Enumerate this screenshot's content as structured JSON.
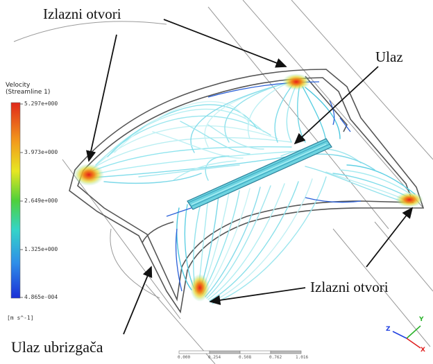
{
  "labels": {
    "outlets_top": "Izlazni otvori",
    "inlet": "Ulaz",
    "outlets_bottom": "Izlazni otvori",
    "injector_inlet": "Ulaz ubrizgača"
  },
  "colorbar": {
    "title": "Velocity",
    "subtitle": "(Streamline 1)",
    "ticks": [
      "5.297e+000",
      "3.973e+000",
      "2.649e+000",
      "1.325e+000",
      "4.865e-004"
    ],
    "unit": "[m s^-1]"
  },
  "scale_bar": {
    "ticks": [
      "0.000",
      "0.254",
      "0.508",
      "0.762",
      "1.016"
    ]
  },
  "triad": {
    "x": "X",
    "y": "Y",
    "z": "Z"
  },
  "colors": {
    "streamline_low": "#1a53d8",
    "streamline_mid": "#5fe0e6",
    "streamline_high": "#f03a12",
    "outline": "#555555"
  }
}
